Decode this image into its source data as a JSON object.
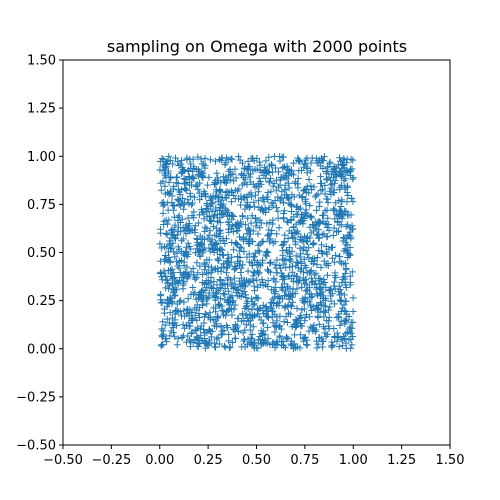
{
  "chart_data": {
    "type": "scatter",
    "title": "sampling on Omega with 2000 points",
    "xlabel": "",
    "ylabel": "",
    "xlim": [
      -0.5,
      1.5
    ],
    "ylim": [
      -0.5,
      1.5
    ],
    "xticks": [
      -0.5,
      -0.25,
      0.0,
      0.25,
      0.5,
      0.75,
      1.0,
      1.25,
      1.5
    ],
    "xtick_labels": [
      "−0.50",
      "−0.25",
      "0.00",
      "0.25",
      "0.50",
      "0.75",
      "1.00",
      "1.25",
      "1.50"
    ],
    "yticks": [
      -0.5,
      -0.25,
      0.0,
      0.25,
      0.5,
      0.75,
      1.0,
      1.25,
      1.5
    ],
    "ytick_labels": [
      "−0.50",
      "−0.25",
      "0.00",
      "0.25",
      "0.50",
      "0.75",
      "1.00",
      "1.25",
      "1.50"
    ],
    "grid": false,
    "marker": "plus",
    "color": "#1f77b4",
    "series": [
      {
        "n_points": 2000,
        "distribution": "uniform",
        "x_range": [
          0.0,
          1.0
        ],
        "y_range": [
          0.0,
          1.0
        ]
      }
    ]
  }
}
